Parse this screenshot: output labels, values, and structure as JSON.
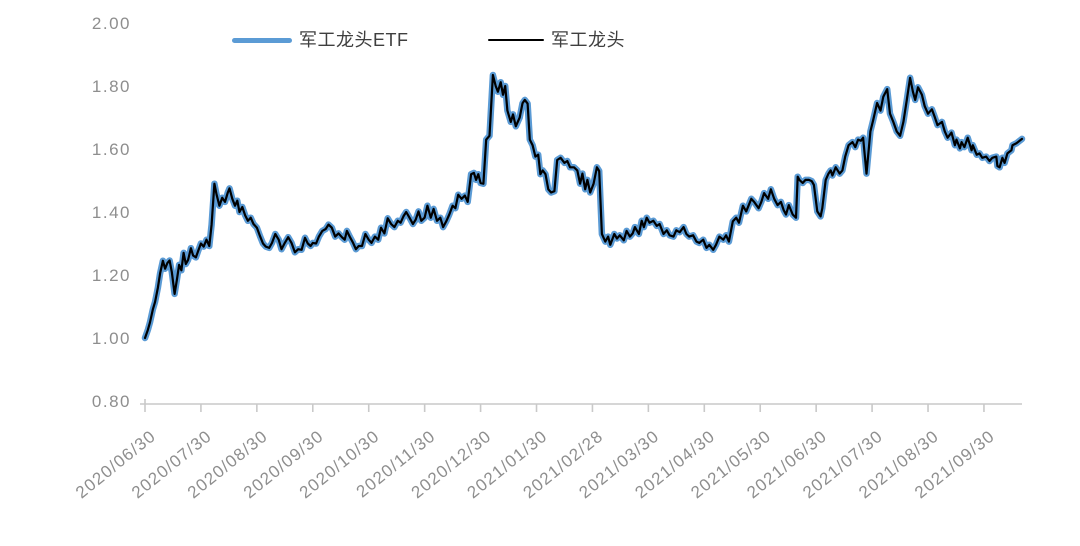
{
  "chart_data": {
    "type": "line",
    "title": "",
    "grid": false,
    "legend_position": "top",
    "background_color": "#ffffff",
    "axis_color": "#c9c9c9",
    "tick_label_color": "#8e8e8e",
    "legend": [
      {
        "label": "军工龙头ETF",
        "color": "#5B9BD5",
        "style": "thick"
      },
      {
        "label": "军工龙头",
        "color": "#000000",
        "style": "thin"
      }
    ],
    "y_axis": {
      "min": 0.8,
      "max": 2.0,
      "tick_labels": [
        "2.00",
        "1.80",
        "1.60",
        "1.40",
        "1.20",
        "1.00",
        "0.80"
      ]
    },
    "x_axis": {
      "unit": "date",
      "tick_labels": [
        "2020/06/30",
        "2020/07/30",
        "2020/08/30",
        "2020/09/30",
        "2020/10/30",
        "2020/11/30",
        "2020/12/30",
        "2021/01/30",
        "2021/02/28",
        "2021/03/30",
        "2021/04/30",
        "2021/05/30",
        "2021/06/30",
        "2021/07/30",
        "2021/08/30",
        "2021/09/30"
      ]
    },
    "x_unit_note": "x values are months after 2020/06/30 (0 = 2020/06/30, 1 = 2020/07/30, ...)",
    "x": [
      0,
      0.05,
      0.09,
      0.14,
      0.18,
      0.23,
      0.27,
      0.32,
      0.36,
      0.4,
      0.44,
      0.48,
      0.53,
      0.57,
      0.61,
      0.65,
      0.69,
      0.73,
      0.77,
      0.82,
      0.86,
      0.91,
      0.95,
      1,
      1.05,
      1.1,
      1.15,
      1.19,
      1.24,
      1.28,
      1.33,
      1.38,
      1.43,
      1.48,
      1.51,
      1.56,
      1.61,
      1.65,
      1.69,
      1.74,
      1.79,
      1.84,
      1.89,
      1.94,
      2,
      2.06,
      2.11,
      2.16,
      2.22,
      2.27,
      2.33,
      2.39,
      2.44,
      2.5,
      2.56,
      2.62,
      2.68,
      2.74,
      2.8,
      2.86,
      2.91,
      2.96,
      3,
      3.06,
      3.11,
      3.17,
      3.23,
      3.28,
      3.34,
      3.4,
      3.46,
      3.52,
      3.57,
      3.61,
      3.66,
      3.72,
      3.77,
      3.82,
      3.88,
      3.94,
      4,
      4.05,
      4.11,
      4.17,
      4.22,
      4.28,
      4.34,
      4.4,
      4.46,
      4.52,
      4.57,
      4.62,
      4.67,
      4.73,
      4.79,
      4.84,
      4.89,
      4.94,
      5,
      5.05,
      5.11,
      5.16,
      5.22,
      5.28,
      5.33,
      5.39,
      5.44,
      5.5,
      5.55,
      5.6,
      5.66,
      5.72,
      5.77,
      5.83,
      5.88,
      5.92,
      5.96,
      6,
      6.05,
      6.1,
      6.16,
      6.22,
      6.27,
      6.31,
      6.36,
      6.4,
      6.44,
      6.48,
      6.54,
      6.58,
      6.63,
      6.7,
      6.75,
      6.79,
      6.84,
      6.88,
      6.93,
      6.98,
      7.03,
      7.07,
      7.11,
      7.16,
      7.21,
      7.26,
      7.32,
      7.37,
      7.43,
      7.5,
      7.55,
      7.6,
      7.67,
      7.73,
      7.78,
      7.82,
      7.87,
      7.91,
      7.96,
      8.02,
      8.08,
      8.12,
      8.17,
      8.23,
      8.28,
      8.32,
      8.39,
      8.44,
      8.49,
      8.56,
      8.61,
      8.67,
      8.72,
      8.76,
      8.83,
      8.88,
      8.92,
      8.97,
      9.02,
      9.09,
      9.15,
      9.2,
      9.27,
      9.33,
      9.38,
      9.45,
      9.5,
      9.56,
      9.63,
      9.68,
      9.73,
      9.8,
      9.86,
      9.91,
      9.98,
      10.04,
      10.09,
      10.16,
      10.21,
      10.27,
      10.34,
      10.39,
      10.44,
      10.51,
      10.57,
      10.62,
      10.69,
      10.75,
      10.84,
      10.89,
      10.97,
      11.02,
      11.07,
      11.14,
      11.19,
      11.25,
      11.31,
      11.37,
      11.42,
      11.46,
      11.51,
      11.58,
      11.64,
      11.67,
      11.7,
      11.76,
      11.81,
      11.87,
      11.92,
      11.96,
      12.02,
      12.08,
      12.11,
      12.17,
      12.22,
      12.26,
      12.29,
      12.35,
      12.42,
      12.47,
      12.52,
      12.58,
      12.65,
      12.7,
      12.75,
      12.8,
      12.84,
      12.9,
      12.97,
      13.02,
      13.09,
      13.15,
      13.2,
      13.27,
      13.32,
      13.38,
      13.44,
      13.5,
      13.56,
      13.62,
      13.68,
      13.73,
      13.77,
      13.82,
      13.89,
      13.94,
      14,
      14.07,
      14.12,
      14.17,
      14.25,
      14.3,
      14.35,
      14.42,
      14.48,
      14.51,
      14.57,
      14.6,
      14.65,
      14.71,
      14.78,
      14.8,
      14.87,
      14.92,
      14.97,
      15.04,
      15.1,
      15.15,
      15.22,
      15.24,
      15.28,
      15.33,
      15.37,
      15.42,
      15.49,
      15.51,
      15.58,
      15.68
    ],
    "series": [
      {
        "name": "军工龙头ETF",
        "color": "#5B9BD5",
        "line_width": 6.5,
        "values": [
          1,
          1.025,
          1.05,
          1.09,
          1.115,
          1.16,
          1.205,
          1.245,
          1.22,
          1.238,
          1.246,
          1.21,
          1.14,
          1.185,
          1.232,
          1.215,
          1.27,
          1.235,
          1.248,
          1.285,
          1.262,
          1.256,
          1.276,
          1.3,
          1.29,
          1.312,
          1.292,
          1.36,
          1.49,
          1.455,
          1.42,
          1.445,
          1.432,
          1.462,
          1.475,
          1.442,
          1.42,
          1.436,
          1.4,
          1.416,
          1.39,
          1.372,
          1.382,
          1.362,
          1.35,
          1.322,
          1.3,
          1.29,
          1.286,
          1.302,
          1.33,
          1.312,
          1.282,
          1.302,
          1.32,
          1.302,
          1.272,
          1.282,
          1.28,
          1.318,
          1.3,
          1.292,
          1.302,
          1.3,
          1.322,
          1.34,
          1.346,
          1.36,
          1.35,
          1.322,
          1.332,
          1.32,
          1.312,
          1.34,
          1.322,
          1.302,
          1.282,
          1.292,
          1.292,
          1.33,
          1.312,
          1.302,
          1.322,
          1.312,
          1.35,
          1.332,
          1.38,
          1.362,
          1.352,
          1.372,
          1.366,
          1.386,
          1.4,
          1.382,
          1.362,
          1.376,
          1.402,
          1.372,
          1.382,
          1.42,
          1.382,
          1.41,
          1.372,
          1.382,
          1.352,
          1.372,
          1.392,
          1.42,
          1.412,
          1.455,
          1.442,
          1.452,
          1.432,
          1.52,
          1.524,
          1.502,
          1.52,
          1.492,
          1.49,
          1.63,
          1.642,
          1.835,
          1.8,
          1.782,
          1.812,
          1.772,
          1.8,
          1.722,
          1.686,
          1.71,
          1.672,
          1.7,
          1.745,
          1.756,
          1.744,
          1.63,
          1.612,
          1.576,
          1.582,
          1.52,
          1.532,
          1.52,
          1.472,
          1.462,
          1.466,
          1.565,
          1.572,
          1.556,
          1.562,
          1.542,
          1.542,
          1.532,
          1.49,
          1.522,
          1.472,
          1.502,
          1.462,
          1.49,
          1.542,
          1.53,
          1.33,
          1.306,
          1.322,
          1.296,
          1.33,
          1.316,
          1.326,
          1.31,
          1.34,
          1.322,
          1.332,
          1.352,
          1.33,
          1.372,
          1.352,
          1.382,
          1.366,
          1.372,
          1.356,
          1.362,
          1.33,
          1.342,
          1.326,
          1.322,
          1.342,
          1.336,
          1.352,
          1.33,
          1.322,
          1.326,
          1.306,
          1.302,
          1.312,
          1.286,
          1.296,
          1.28,
          1.296,
          1.322,
          1.312,
          1.326,
          1.306,
          1.37,
          1.382,
          1.366,
          1.42,
          1.402,
          1.442,
          1.432,
          1.412,
          1.432,
          1.46,
          1.442,
          1.472,
          1.442,
          1.422,
          1.432,
          1.406,
          1.392,
          1.422,
          1.392,
          1.382,
          1.512,
          1.502,
          1.492,
          1.502,
          1.502,
          1.498,
          1.486,
          1.402,
          1.386,
          1.412,
          1.502,
          1.522,
          1.532,
          1.516,
          1.542,
          1.522,
          1.532,
          1.576,
          1.612,
          1.622,
          1.606,
          1.63,
          1.626,
          1.636,
          1.522,
          1.656,
          1.692,
          1.746,
          1.722,
          1.766,
          1.79,
          1.712,
          1.686,
          1.656,
          1.642,
          1.686,
          1.756,
          1.826,
          1.782,
          1.756,
          1.796,
          1.772,
          1.736,
          1.712,
          1.726,
          1.702,
          1.676,
          1.686,
          1.656,
          1.636,
          1.652,
          1.612,
          1.63,
          1.602,
          1.622,
          1.606,
          1.636,
          1.596,
          1.612,
          1.582,
          1.586,
          1.572,
          1.576,
          1.562,
          1.572,
          1.576,
          1.546,
          1.542,
          1.572,
          1.556,
          1.586,
          1.596,
          1.612,
          1.618,
          1.632
        ]
      },
      {
        "name": "军工龙头",
        "color": "#000000",
        "line_width": 2.2,
        "values": [
          1,
          1.025,
          1.05,
          1.09,
          1.115,
          1.16,
          1.205,
          1.245,
          1.22,
          1.238,
          1.246,
          1.21,
          1.14,
          1.185,
          1.232,
          1.215,
          1.27,
          1.235,
          1.248,
          1.285,
          1.262,
          1.256,
          1.276,
          1.3,
          1.29,
          1.312,
          1.292,
          1.36,
          1.49,
          1.455,
          1.42,
          1.445,
          1.432,
          1.462,
          1.475,
          1.442,
          1.42,
          1.436,
          1.4,
          1.416,
          1.39,
          1.372,
          1.382,
          1.362,
          1.35,
          1.322,
          1.3,
          1.29,
          1.286,
          1.302,
          1.33,
          1.312,
          1.282,
          1.302,
          1.32,
          1.302,
          1.272,
          1.282,
          1.28,
          1.318,
          1.3,
          1.292,
          1.302,
          1.3,
          1.322,
          1.34,
          1.346,
          1.36,
          1.35,
          1.322,
          1.332,
          1.32,
          1.312,
          1.34,
          1.322,
          1.302,
          1.282,
          1.292,
          1.292,
          1.33,
          1.312,
          1.302,
          1.322,
          1.312,
          1.35,
          1.332,
          1.38,
          1.362,
          1.352,
          1.372,
          1.366,
          1.386,
          1.4,
          1.382,
          1.362,
          1.376,
          1.402,
          1.372,
          1.382,
          1.42,
          1.382,
          1.41,
          1.372,
          1.382,
          1.352,
          1.372,
          1.392,
          1.42,
          1.412,
          1.455,
          1.442,
          1.452,
          1.432,
          1.52,
          1.524,
          1.502,
          1.52,
          1.492,
          1.49,
          1.63,
          1.642,
          1.835,
          1.8,
          1.782,
          1.812,
          1.772,
          1.8,
          1.722,
          1.686,
          1.71,
          1.672,
          1.7,
          1.745,
          1.756,
          1.744,
          1.63,
          1.612,
          1.576,
          1.582,
          1.52,
          1.532,
          1.52,
          1.472,
          1.462,
          1.466,
          1.565,
          1.572,
          1.556,
          1.562,
          1.542,
          1.542,
          1.532,
          1.49,
          1.522,
          1.472,
          1.502,
          1.462,
          1.49,
          1.542,
          1.53,
          1.33,
          1.306,
          1.322,
          1.296,
          1.33,
          1.316,
          1.326,
          1.31,
          1.34,
          1.322,
          1.332,
          1.352,
          1.33,
          1.372,
          1.352,
          1.382,
          1.366,
          1.372,
          1.356,
          1.362,
          1.33,
          1.342,
          1.326,
          1.322,
          1.342,
          1.336,
          1.352,
          1.33,
          1.322,
          1.326,
          1.306,
          1.302,
          1.312,
          1.286,
          1.296,
          1.28,
          1.296,
          1.322,
          1.312,
          1.326,
          1.306,
          1.37,
          1.382,
          1.366,
          1.42,
          1.402,
          1.442,
          1.432,
          1.412,
          1.432,
          1.46,
          1.442,
          1.472,
          1.442,
          1.422,
          1.432,
          1.406,
          1.392,
          1.422,
          1.392,
          1.382,
          1.512,
          1.502,
          1.492,
          1.502,
          1.502,
          1.498,
          1.486,
          1.402,
          1.386,
          1.412,
          1.502,
          1.522,
          1.532,
          1.516,
          1.542,
          1.522,
          1.532,
          1.576,
          1.612,
          1.622,
          1.606,
          1.63,
          1.626,
          1.636,
          1.522,
          1.656,
          1.692,
          1.746,
          1.722,
          1.766,
          1.79,
          1.712,
          1.686,
          1.656,
          1.642,
          1.686,
          1.756,
          1.826,
          1.782,
          1.756,
          1.796,
          1.772,
          1.736,
          1.712,
          1.726,
          1.702,
          1.676,
          1.686,
          1.656,
          1.636,
          1.652,
          1.612,
          1.63,
          1.602,
          1.622,
          1.606,
          1.636,
          1.596,
          1.612,
          1.582,
          1.586,
          1.572,
          1.576,
          1.562,
          1.572,
          1.576,
          1.546,
          1.542,
          1.572,
          1.556,
          1.586,
          1.596,
          1.612,
          1.618,
          1.632
        ]
      }
    ]
  }
}
